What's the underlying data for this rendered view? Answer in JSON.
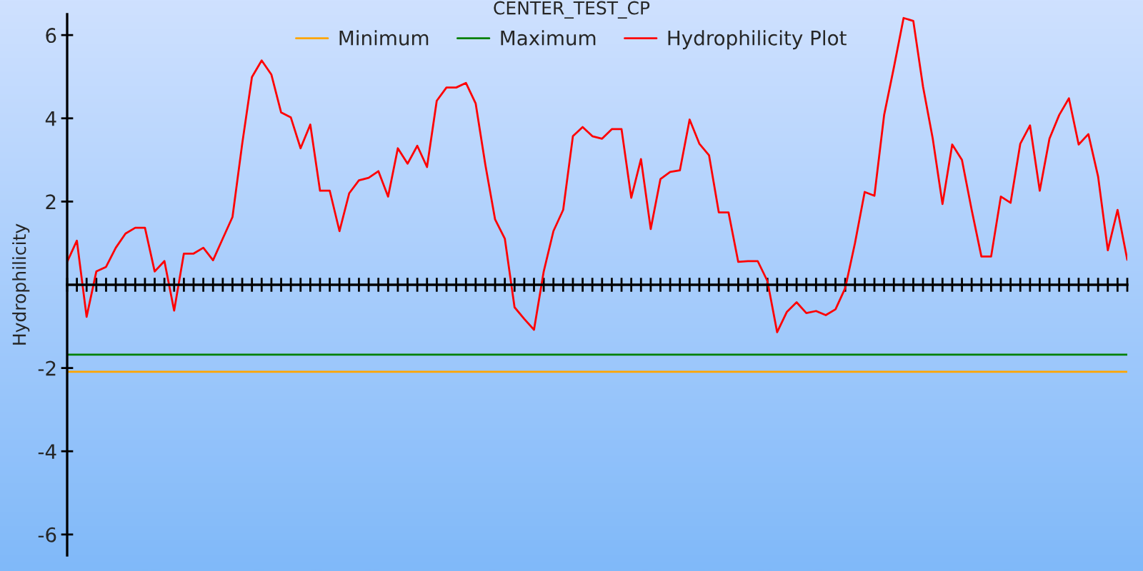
{
  "chart_data": {
    "type": "line",
    "title": "CENTER_TEST_CP",
    "ylabel": "Hydrophilicity",
    "categories": [
      null,
      null,
      null,
      null,
      null,
      null,
      null,
      null,
      null,
      null,
      null,
      null,
      null,
      null,
      null,
      null,
      null,
      null,
      null,
      null,
      null,
      null,
      null,
      null,
      null,
      null,
      null,
      null,
      null,
      null,
      null,
      null,
      null,
      null,
      null,
      null,
      null,
      null,
      null,
      null,
      null,
      null,
      null,
      null,
      null,
      null,
      null,
      null,
      null,
      null,
      null,
      null,
      null,
      null,
      null,
      null,
      null,
      null,
      null,
      null,
      null,
      null,
      null,
      null,
      null,
      null,
      null,
      null,
      null,
      null,
      null,
      null,
      null,
      null,
      null,
      null,
      null,
      null,
      null,
      null,
      null,
      null,
      null,
      null,
      null,
      null,
      null,
      null,
      null,
      null,
      null,
      null,
      null,
      null,
      null,
      null,
      null,
      null,
      null,
      null,
      null,
      null,
      null,
      null,
      null,
      null,
      null,
      null,
      null,
      null
    ],
    "series": [
      {
        "name": "Minimum",
        "color": "#ffa500",
        "values": [
          -2.09,
          -2.09,
          -2.09,
          -2.09,
          -2.09,
          -2.09,
          -2.09,
          -2.09,
          -2.09,
          -2.09,
          -2.09,
          -2.09,
          -2.09,
          -2.09,
          -2.09,
          -2.09,
          -2.09,
          -2.09,
          -2.09,
          -2.09,
          -2.09,
          -2.09,
          -2.09,
          -2.09,
          -2.09,
          -2.09,
          -2.09,
          -2.09,
          -2.09,
          -2.09,
          -2.09,
          -2.09,
          -2.09,
          -2.09,
          -2.09,
          -2.09,
          -2.09,
          -2.09,
          -2.09,
          -2.09,
          -2.09,
          -2.09,
          -2.09,
          -2.09,
          -2.09,
          -2.09,
          -2.09,
          -2.09,
          -2.09,
          -2.09,
          -2.09,
          -2.09,
          -2.09,
          -2.09,
          -2.09,
          -2.09,
          -2.09,
          -2.09,
          -2.09,
          -2.09,
          -2.09,
          -2.09,
          -2.09,
          -2.09,
          -2.09,
          -2.09,
          -2.09,
          -2.09,
          -2.09,
          -2.09,
          -2.09,
          -2.09,
          -2.09,
          -2.09,
          -2.09,
          -2.09,
          -2.09,
          -2.09,
          -2.09,
          -2.09,
          -2.09,
          -2.09,
          -2.09,
          -2.09,
          -2.09,
          -2.09,
          -2.09,
          -2.09,
          -2.09,
          -2.09,
          -2.09,
          -2.09,
          -2.09,
          -2.09,
          -2.09,
          -2.09,
          -2.09,
          -2.09,
          -2.09,
          -2.09,
          -2.09,
          -2.09,
          -2.09,
          -2.09,
          -2.09,
          -2.09,
          -2.09,
          -2.09,
          -2.09,
          -2.09
        ]
      },
      {
        "name": "Maximum",
        "color": "#008000",
        "values": [
          -1.68,
          -1.68,
          -1.68,
          -1.68,
          -1.68,
          -1.68,
          -1.68,
          -1.68,
          -1.68,
          -1.68,
          -1.68,
          -1.68,
          -1.68,
          -1.68,
          -1.68,
          -1.68,
          -1.68,
          -1.68,
          -1.68,
          -1.68,
          -1.68,
          -1.68,
          -1.68,
          -1.68,
          -1.68,
          -1.68,
          -1.68,
          -1.68,
          -1.68,
          -1.68,
          -1.68,
          -1.68,
          -1.68,
          -1.68,
          -1.68,
          -1.68,
          -1.68,
          -1.68,
          -1.68,
          -1.68,
          -1.68,
          -1.68,
          -1.68,
          -1.68,
          -1.68,
          -1.68,
          -1.68,
          -1.68,
          -1.68,
          -1.68,
          -1.68,
          -1.68,
          -1.68,
          -1.68,
          -1.68,
          -1.68,
          -1.68,
          -1.68,
          -1.68,
          -1.68,
          -1.68,
          -1.68,
          -1.68,
          -1.68,
          -1.68,
          -1.68,
          -1.68,
          -1.68,
          -1.68,
          -1.68,
          -1.68,
          -1.68,
          -1.68,
          -1.68,
          -1.68,
          -1.68,
          -1.68,
          -1.68,
          -1.68,
          -1.68,
          -1.68,
          -1.68,
          -1.68,
          -1.68,
          -1.68,
          -1.68,
          -1.68,
          -1.68,
          -1.68,
          -1.68,
          -1.68,
          -1.68,
          -1.68,
          -1.68,
          -1.68,
          -1.68,
          -1.68,
          -1.68,
          -1.68,
          -1.68,
          -1.68,
          -1.68,
          -1.68,
          -1.68,
          -1.68,
          -1.68,
          -1.68,
          -1.68,
          -1.68,
          -1.68
        ]
      },
      {
        "name": "Hydrophilicity Plot",
        "color": "#ff0000",
        "values": [
          0.55,
          1.06,
          -0.77,
          0.32,
          0.43,
          0.89,
          1.23,
          1.37,
          1.37,
          0.32,
          0.57,
          -0.62,
          0.75,
          0.75,
          0.89,
          0.59,
          1.11,
          1.63,
          3.39,
          4.99,
          5.39,
          5.05,
          4.14,
          4.02,
          3.28,
          3.85,
          2.26,
          2.26,
          1.29,
          2.2,
          2.51,
          2.57,
          2.73,
          2.12,
          3.28,
          2.91,
          3.34,
          2.83,
          4.42,
          4.74,
          4.74,
          4.85,
          4.36,
          2.88,
          1.57,
          1.11,
          -0.54,
          -0.82,
          -1.08,
          0.32,
          1.29,
          1.8,
          3.57,
          3.79,
          3.57,
          3.51,
          3.74,
          3.74,
          2.09,
          3.02,
          1.34,
          2.54,
          2.71,
          2.75,
          3.97,
          3.39,
          3.11,
          1.74,
          1.74,
          0.55,
          0.57,
          0.57,
          0.09,
          -1.14,
          -0.65,
          -0.42,
          -0.68,
          -0.63,
          -0.73,
          -0.59,
          -0.08,
          1.0,
          2.23,
          2.14,
          4.08,
          5.22,
          6.41,
          6.34,
          4.76,
          3.51,
          1.94,
          3.37,
          3.0,
          1.8,
          0.68,
          0.68,
          2.12,
          1.97,
          3.39,
          3.83,
          2.26,
          3.51,
          4.08,
          4.48,
          3.37,
          3.62,
          2.6,
          0.83,
          1.8,
          0.6
        ]
      }
    ],
    "ylim": [
      -6.5,
      6.5
    ],
    "yticks": [
      -6,
      -4,
      -2,
      2,
      4,
      6
    ],
    "legend": "top",
    "tick_labels": "y"
  }
}
